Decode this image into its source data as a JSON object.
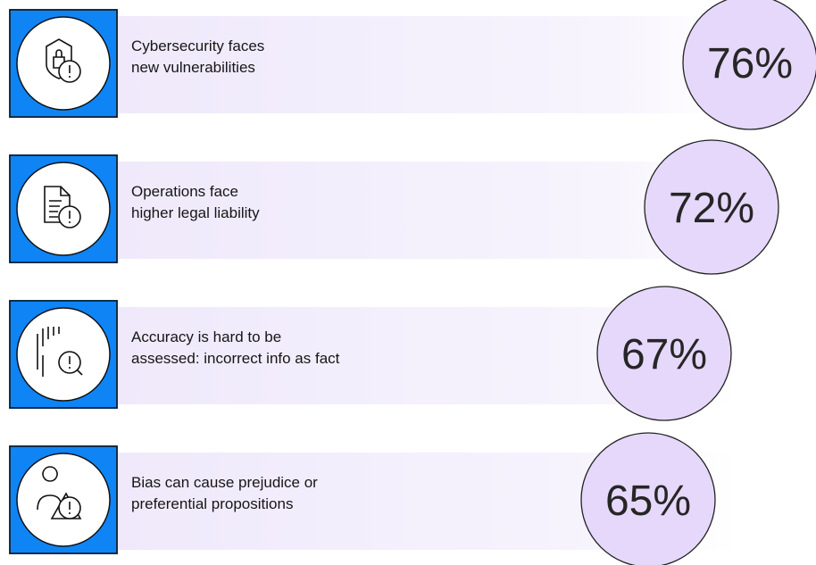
{
  "items": [
    {
      "lines": [
        "Cybersecurity faces",
        "new vulnerabilities"
      ],
      "value": "76%"
    },
    {
      "lines": [
        "Operations face",
        "higher legal liability"
      ],
      "value": "72%"
    },
    {
      "lines": [
        "Accuracy is hard to be",
        "assessed: incorrect info as fact"
      ],
      "value": "67%"
    },
    {
      "lines": [
        "Bias can cause prejudice or",
        "preferential propositions"
      ],
      "value": "65%"
    }
  ]
}
